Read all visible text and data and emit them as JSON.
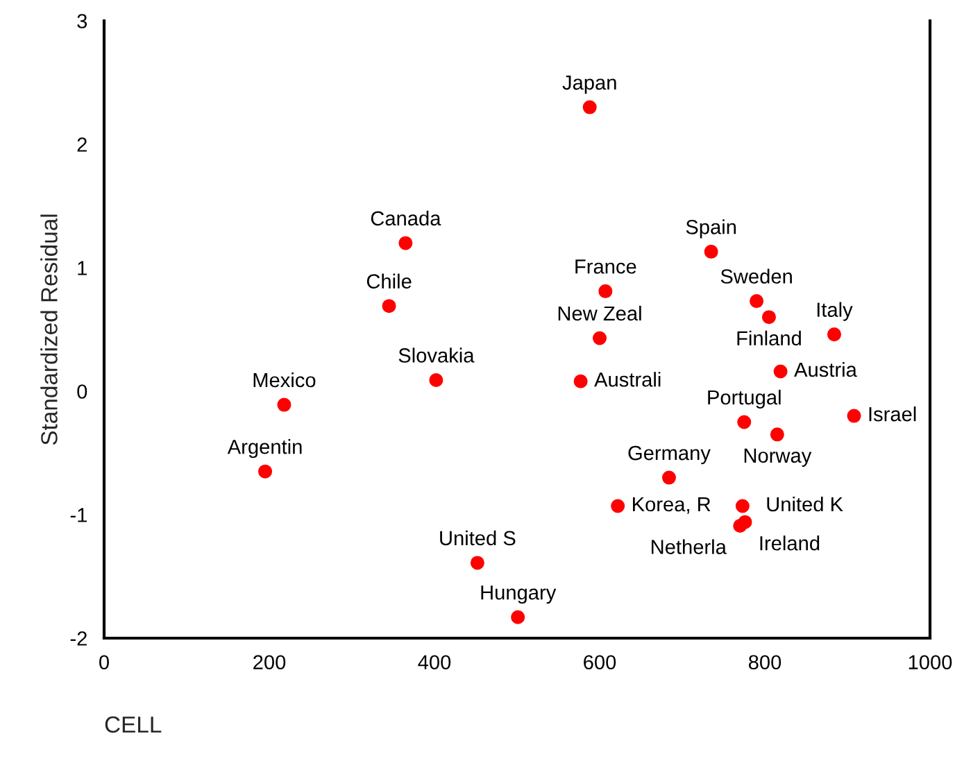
{
  "chart_data": {
    "type": "scatter",
    "xlabel": "CELL",
    "ylabel": "Standardized Residual",
    "xlim": [
      0,
      1000
    ],
    "xticks": [
      0,
      200,
      400,
      600,
      800,
      1000
    ],
    "ylim": [
      -2,
      3
    ],
    "yticks": [
      -2,
      -1,
      0,
      1,
      2,
      3
    ],
    "marker": "circle",
    "grid": false,
    "legend": false,
    "series": [
      {
        "name": "Japan",
        "color": "#ff0000",
        "x": [
          588
        ],
        "values": [
          2.3
        ]
      },
      {
        "name": "Canada",
        "color": "#ff0000",
        "x": [
          365
        ],
        "values": [
          1.2
        ]
      },
      {
        "name": "Chile",
        "color": "#ff0000",
        "x": [
          345
        ],
        "values": [
          0.69
        ]
      },
      {
        "name": "France",
        "color": "#ff0000",
        "x": [
          607
        ],
        "values": [
          0.81
        ]
      },
      {
        "name": "New Zeal",
        "color": "#ff0000",
        "x": [
          600
        ],
        "values": [
          0.43
        ]
      },
      {
        "name": "Australi",
        "color": "#ff0000",
        "x": [
          577
        ],
        "values": [
          0.08
        ]
      },
      {
        "name": "Slovakia",
        "color": "#ff0000",
        "x": [
          402
        ],
        "values": [
          0.09
        ]
      },
      {
        "name": "Mexico",
        "color": "#ff0000",
        "x": [
          218
        ],
        "values": [
          -0.11
        ]
      },
      {
        "name": "Argentin",
        "color": "#ff0000",
        "x": [
          195
        ],
        "values": [
          -0.65
        ]
      },
      {
        "name": "Spain",
        "color": "#ff0000",
        "x": [
          735
        ],
        "values": [
          1.13
        ]
      },
      {
        "name": "Sweden",
        "color": "#ff0000",
        "x": [
          790
        ],
        "values": [
          0.73
        ]
      },
      {
        "name": "Finland",
        "color": "#ff0000",
        "x": [
          805
        ],
        "values": [
          0.6
        ]
      },
      {
        "name": "Italy",
        "color": "#ff0000",
        "x": [
          884
        ],
        "values": [
          0.46
        ]
      },
      {
        "name": "Austria",
        "color": "#ff0000",
        "x": [
          819
        ],
        "values": [
          0.16
        ]
      },
      {
        "name": "Israel",
        "color": "#ff0000",
        "x": [
          908
        ],
        "values": [
          -0.2
        ]
      },
      {
        "name": "Portugal",
        "color": "#ff0000",
        "x": [
          775
        ],
        "values": [
          -0.25
        ]
      },
      {
        "name": "Norway",
        "color": "#ff0000",
        "x": [
          815
        ],
        "values": [
          -0.35
        ]
      },
      {
        "name": "Germany",
        "color": "#ff0000",
        "x": [
          684
        ],
        "values": [
          -0.7
        ]
      },
      {
        "name": "Korea, R",
        "color": "#ff0000",
        "x": [
          622
        ],
        "values": [
          -0.93
        ]
      },
      {
        "name": "United K",
        "color": "#ff0000",
        "x": [
          773
        ],
        "values": [
          -0.93
        ]
      },
      {
        "name": "Ireland",
        "color": "#ff0000",
        "x": [
          776
        ],
        "values": [
          -1.06
        ]
      },
      {
        "name": "Netherla",
        "color": "#ff0000",
        "x": [
          770
        ],
        "values": [
          -1.09
        ]
      },
      {
        "name": "United S",
        "color": "#ff0000",
        "x": [
          452
        ],
        "values": [
          -1.39
        ]
      },
      {
        "name": "Hungary",
        "color": "#ff0000",
        "x": [
          501
        ],
        "values": [
          -1.83
        ]
      }
    ]
  }
}
